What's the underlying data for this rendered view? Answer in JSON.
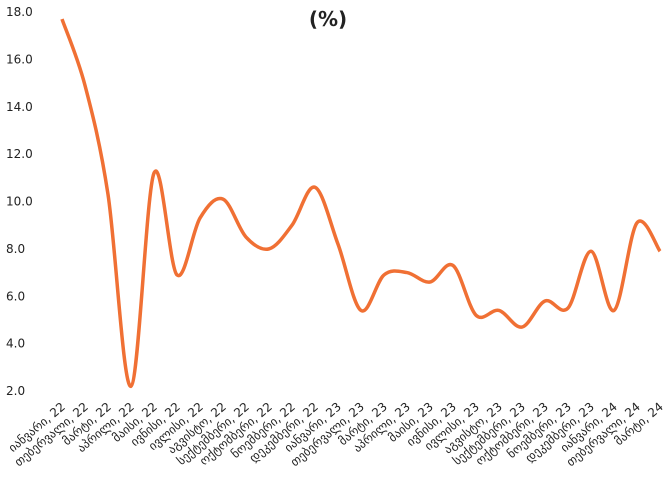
{
  "chart_data": {
    "type": "line",
    "title": "(%)",
    "categories": [
      "იანვარი, 22",
      "თებერვალი, 22",
      "მარტი, 22",
      "აპრილი, 22",
      "მაისი, 22",
      "ივნისი, 22",
      "ივლისი, 22",
      "აგვისტო, 22",
      "სექტემბერი, 22",
      "ოქტომბერი, 22",
      "ნოემბერი, 22",
      "დეკემბერი, 22",
      "იანვარი, 23",
      "თებერვალი, 23",
      "მარტი, 23",
      "აპრილი, 23",
      "მაისი, 23",
      "ივნისი, 23",
      "ივლისი, 23",
      "აგვისტო, 23",
      "სექტემბერი, 23",
      "ოქტომბერი, 23",
      "ნოემბერი, 23",
      "დეკემბერი, 23",
      "იანვარი, 24",
      "თებერვალი, 24",
      "მარტი, 24"
    ],
    "values": [
      17.7,
      14.9,
      10.3,
      2.2,
      11.2,
      6.9,
      9.3,
      10.1,
      8.5,
      8.0,
      9.0,
      10.6,
      8.2,
      5.4,
      6.9,
      7.0,
      6.6,
      7.3,
      5.2,
      5.4,
      4.7,
      5.8,
      5.5,
      7.9,
      5.4,
      9.1,
      7.9
    ],
    "color": "#f07034",
    "ylim": [
      2,
      18
    ],
    "yticks": [
      {
        "value": 2,
        "label": "2.0"
      },
      {
        "value": 4,
        "label": "4.0"
      },
      {
        "value": 6,
        "label": "6.0"
      },
      {
        "value": 8,
        "label": "8.0"
      },
      {
        "value": 10,
        "label": "10.0"
      },
      {
        "value": 12,
        "label": "12.0"
      },
      {
        "value": 14,
        "label": "14.0"
      },
      {
        "value": 16,
        "label": "16.0"
      },
      {
        "value": 18,
        "label": "18.0"
      }
    ]
  }
}
